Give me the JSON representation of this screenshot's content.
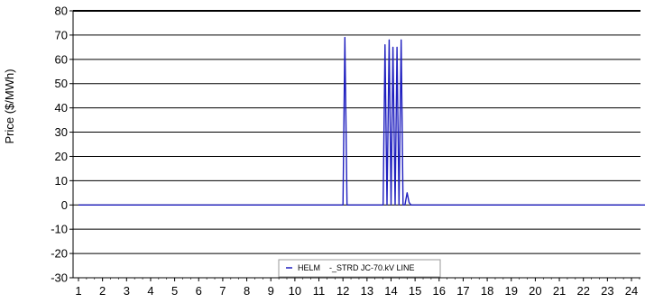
{
  "chart_data": {
    "type": "line",
    "title": "",
    "xlabel": "",
    "ylabel": "Price ($/MWh)",
    "ylim": [
      -30,
      80
    ],
    "xlim": [
      1,
      24.6
    ],
    "y_ticks": [
      -30,
      -20,
      -10,
      0,
      10,
      20,
      30,
      40,
      50,
      60,
      70,
      80
    ],
    "x_ticks": [
      1,
      2,
      3,
      4,
      5,
      6,
      7,
      8,
      9,
      10,
      11,
      12,
      13,
      14,
      15,
      16,
      17,
      18,
      19,
      20,
      21,
      22,
      23,
      24
    ],
    "grid": "horizontal",
    "legend_position": "bottom-center",
    "series": [
      {
        "name": "HELM    -_STRD JC-70.kV LINE",
        "color": "#1f1fbf",
        "x": [
          1,
          12.0,
          12.08,
          12.17,
          12.25,
          13.67,
          13.75,
          13.83,
          13.92,
          14.0,
          14.08,
          14.17,
          14.25,
          14.33,
          14.42,
          14.5,
          14.58,
          14.67,
          14.75,
          14.83,
          24.6
        ],
        "y": [
          0,
          0,
          69,
          0,
          0,
          0,
          66,
          0,
          68,
          0,
          65,
          0,
          65,
          0,
          68,
          0,
          0,
          5,
          1,
          0,
          0
        ]
      }
    ]
  }
}
